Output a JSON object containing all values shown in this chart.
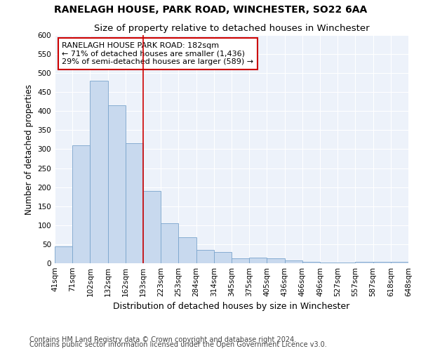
{
  "title1": "RANELAGH HOUSE, PARK ROAD, WINCHESTER, SO22 6AA",
  "title2": "Size of property relative to detached houses in Winchester",
  "xlabel": "Distribution of detached houses by size in Winchester",
  "ylabel": "Number of detached properties",
  "bar_color": "#c8d9ee",
  "bar_edge_color": "#7aa4cc",
  "categories": [
    "41sqm",
    "71sqm",
    "102sqm",
    "132sqm",
    "162sqm",
    "193sqm",
    "223sqm",
    "253sqm",
    "284sqm",
    "314sqm",
    "345sqm",
    "375sqm",
    "405sqm",
    "436sqm",
    "466sqm",
    "496sqm",
    "527sqm",
    "557sqm",
    "587sqm",
    "618sqm",
    "648sqm"
  ],
  "values": [
    45,
    310,
    480,
    415,
    315,
    190,
    105,
    68,
    36,
    30,
    13,
    14,
    13,
    8,
    3,
    2,
    1,
    3,
    3,
    3
  ],
  "ylim": [
    0,
    600
  ],
  "yticks": [
    0,
    50,
    100,
    150,
    200,
    250,
    300,
    350,
    400,
    450,
    500,
    550,
    600
  ],
  "vline_color": "#cc0000",
  "annotation_box_text": "RANELAGH HOUSE PARK ROAD: 182sqm\n← 71% of detached houses are smaller (1,436)\n29% of semi-detached houses are larger (589) →",
  "annotation_box_color": "#cc0000",
  "footer1": "Contains HM Land Registry data © Crown copyright and database right 2024.",
  "footer2": "Contains public sector information licensed under the Open Government Licence v3.0.",
  "background_color": "#edf2fa",
  "grid_color": "#ffffff",
  "title_fontsize": 10,
  "subtitle_fontsize": 9.5,
  "tick_fontsize": 7.5,
  "ylabel_fontsize": 8.5,
  "xlabel_fontsize": 9,
  "footer_fontsize": 7,
  "ann_fontsize": 8
}
